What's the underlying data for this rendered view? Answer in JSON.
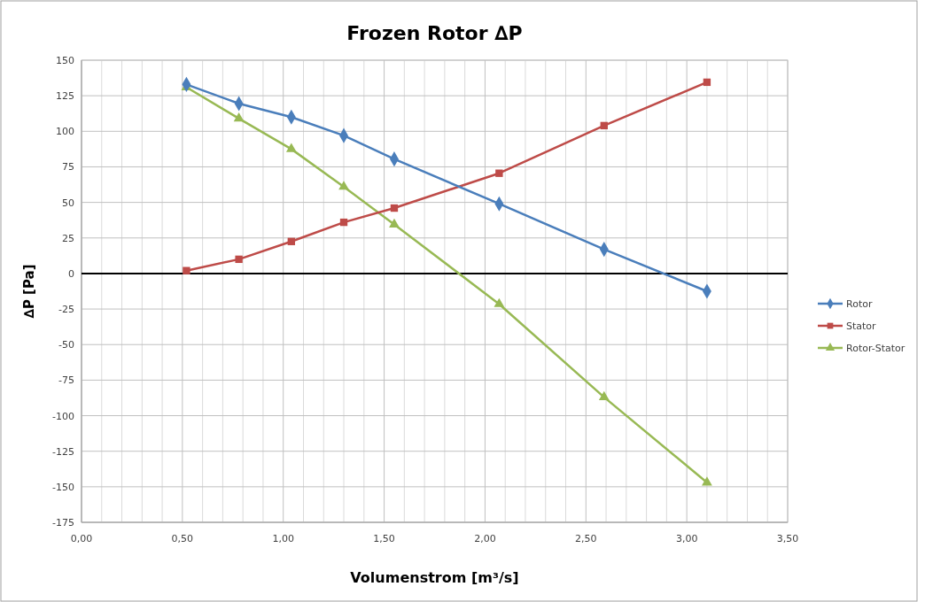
{
  "chart_data": {
    "type": "line",
    "title": "Frozen Rotor ∆P",
    "xlabel": "Volumenstrom  [m³/s]",
    "ylabel": "∆P  [Pa]",
    "x": [
      0.52,
      0.78,
      1.04,
      1.3,
      1.55,
      2.07,
      2.59,
      3.1
    ],
    "series": [
      {
        "name": "Rotor",
        "color": "#4a7ebb",
        "marker": "diamond",
        "values": [
          133,
          119.5,
          110,
          97,
          80.5,
          49,
          17,
          -12.5
        ]
      },
      {
        "name": "Stator",
        "color": "#be4b48",
        "marker": "square",
        "values": [
          2,
          10,
          22.5,
          36,
          46,
          70.5,
          104,
          134.5
        ]
      },
      {
        "name": "Rotor-Stator",
        "color": "#98b954",
        "marker": "triangle",
        "values": [
          131,
          109,
          87.5,
          61,
          34.5,
          -21.5,
          -87,
          -147
        ]
      }
    ],
    "xlim": [
      0,
      3.5
    ],
    "xticks": [
      {
        "value": 0,
        "label": "0,00"
      },
      {
        "value": 0.1,
        "label": null
      },
      {
        "value": 0.2,
        "label": null
      },
      {
        "value": 0.3,
        "label": null
      },
      {
        "value": 0.4,
        "label": null
      },
      {
        "value": 0.5,
        "label": "0,50"
      },
      {
        "value": 0.6,
        "label": null
      },
      {
        "value": 0.7,
        "label": null
      },
      {
        "value": 0.8,
        "label": null
      },
      {
        "value": 0.9,
        "label": null
      },
      {
        "value": 1,
        "label": "1,00"
      },
      {
        "value": 1.1,
        "label": null
      },
      {
        "value": 1.2,
        "label": null
      },
      {
        "value": 1.3,
        "label": null
      },
      {
        "value": 1.4,
        "label": null
      },
      {
        "value": 1.5,
        "label": "1,50"
      },
      {
        "value": 1.6,
        "label": null
      },
      {
        "value": 1.7,
        "label": null
      },
      {
        "value": 1.8,
        "label": null
      },
      {
        "value": 1.9,
        "label": null
      },
      {
        "value": 2,
        "label": "2,00"
      },
      {
        "value": 2.1,
        "label": null
      },
      {
        "value": 2.2,
        "label": null
      },
      {
        "value": 2.3,
        "label": null
      },
      {
        "value": 2.4,
        "label": null
      },
      {
        "value": 2.5,
        "label": "2,50"
      },
      {
        "value": 2.6,
        "label": null
      },
      {
        "value": 2.7,
        "label": null
      },
      {
        "value": 2.8,
        "label": null
      },
      {
        "value": 2.9,
        "label": null
      },
      {
        "value": 3,
        "label": "3,00"
      },
      {
        "value": 3.1,
        "label": null
      },
      {
        "value": 3.2,
        "label": null
      },
      {
        "value": 3.3,
        "label": null
      },
      {
        "value": 3.4,
        "label": null
      },
      {
        "value": 3.5,
        "label": "3,50"
      }
    ],
    "ylim": [
      -175,
      150
    ],
    "yticks": [
      -175,
      -150,
      -125,
      -100,
      -75,
      -50,
      -25,
      0,
      25,
      50,
      75,
      100,
      125,
      150
    ],
    "grid": true,
    "legend": "right",
    "line_style": "solid",
    "ref_lines": [
      {
        "axis": "y",
        "value": 0,
        "color": "#000000"
      }
    ]
  }
}
